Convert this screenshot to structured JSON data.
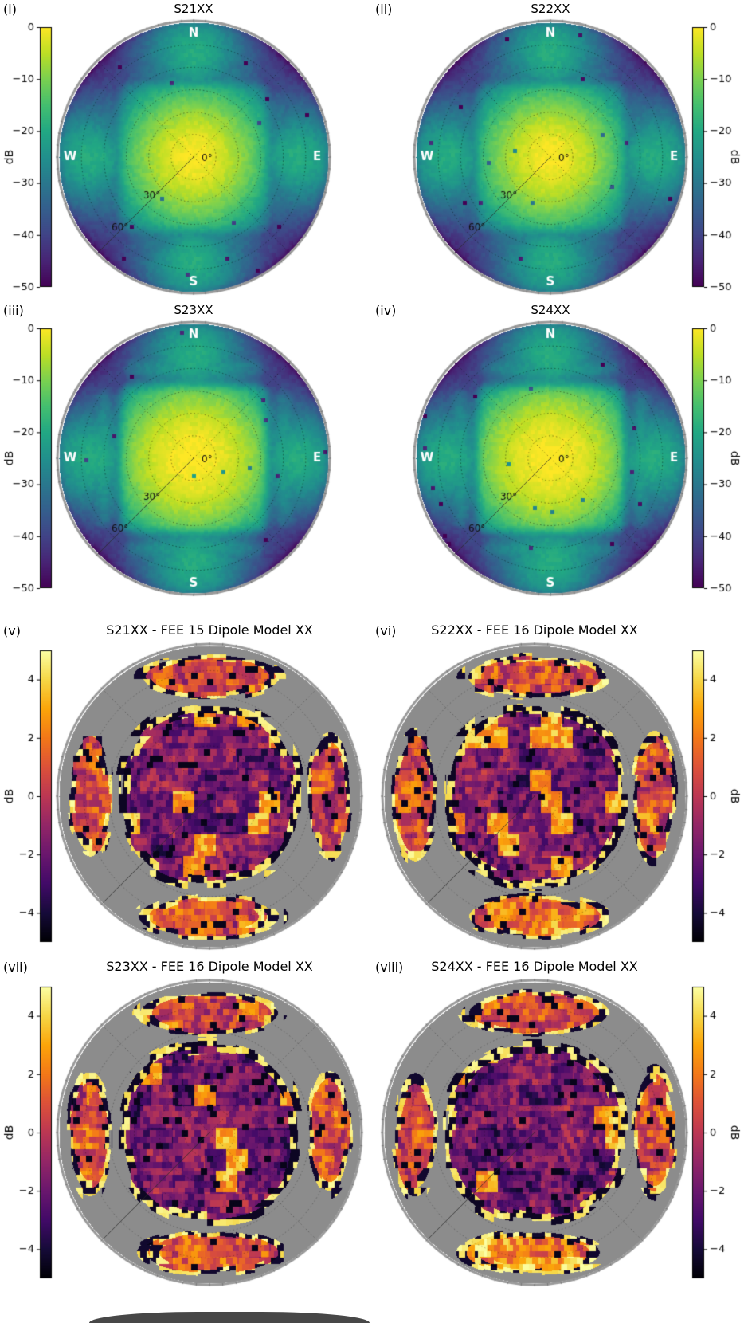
{
  "figure": {
    "rows": 4,
    "cols": 2,
    "background": "#ffffff"
  },
  "colors": {
    "map_background_gray": "#8c8c8c",
    "rim": "#999999",
    "compass_text": "#ffffff",
    "grid_lines": "#000000",
    "beam_colormap_top": "#fde725",
    "beam_colormap_bottom": "#440154",
    "diff_colormap_top": "#fcffa4",
    "diff_colormap_bottom": "#000004"
  },
  "chart_data": [
    {
      "label": "(i)",
      "title": "S21XX",
      "type": "polar_heatmap",
      "colormap": "viridis",
      "units": "dB",
      "vmin": -50,
      "vmax": 0,
      "colorbar_ticks": [
        0,
        -10,
        -20,
        -30,
        -40,
        -50
      ],
      "colorbar_label": "dB",
      "colorbar_side": "left",
      "compass": [
        "N",
        "E",
        "S",
        "W"
      ],
      "zenith_labels": [
        "0°",
        "30°",
        "60°"
      ],
      "zenith_max_deg": 90
    },
    {
      "label": "(ii)",
      "title": "S22XX",
      "type": "polar_heatmap",
      "colormap": "viridis",
      "units": "dB",
      "vmin": -50,
      "vmax": 0,
      "colorbar_ticks": [
        0,
        -10,
        -20,
        -30,
        -40,
        -50
      ],
      "colorbar_label": "dB",
      "colorbar_side": "right",
      "compass": [
        "N",
        "E",
        "S",
        "W"
      ],
      "zenith_labels": [
        "0°",
        "30°",
        "60°"
      ],
      "zenith_max_deg": 90
    },
    {
      "label": "(iii)",
      "title": "S23XX",
      "type": "polar_heatmap",
      "colormap": "viridis",
      "units": "dB",
      "vmin": -50,
      "vmax": 0,
      "colorbar_ticks": [
        0,
        -10,
        -20,
        -30,
        -40,
        -50
      ],
      "colorbar_label": "dB",
      "colorbar_side": "left",
      "compass": [
        "N",
        "E",
        "S",
        "W"
      ],
      "zenith_labels": [
        "0°",
        "30°",
        "60°"
      ],
      "zenith_max_deg": 90
    },
    {
      "label": "(iv)",
      "title": "S24XX",
      "type": "polar_heatmap",
      "colormap": "viridis",
      "units": "dB",
      "vmin": -50,
      "vmax": 0,
      "colorbar_ticks": [
        0,
        -10,
        -20,
        -30,
        -40,
        -50
      ],
      "colorbar_label": "dB",
      "colorbar_side": "right",
      "compass": [
        "N",
        "E",
        "S",
        "W"
      ],
      "zenith_labels": [
        "0°",
        "30°",
        "60°"
      ],
      "zenith_max_deg": 90
    },
    {
      "label": "(v)",
      "title": "S21XX - FEE 15 Dipole Model XX",
      "type": "polar_heatmap",
      "colormap": "inferno",
      "units": "dB",
      "vmin": -5,
      "vmax": 5,
      "colorbar_ticks": [
        4,
        2,
        0,
        -2,
        -4
      ],
      "colorbar_label": "dB",
      "colorbar_side": "left",
      "compass": null,
      "zenith_labels": null,
      "zenith_max_deg": 90
    },
    {
      "label": "(vi)",
      "title": "S22XX - FEE 16 Dipole Model XX",
      "type": "polar_heatmap",
      "colormap": "inferno",
      "units": "dB",
      "vmin": -5,
      "vmax": 5,
      "colorbar_ticks": [
        4,
        2,
        0,
        -2,
        -4
      ],
      "colorbar_label": "dB",
      "colorbar_side": "right",
      "compass": null,
      "zenith_labels": null,
      "zenith_max_deg": 90
    },
    {
      "label": "(vii)",
      "title": "S23XX - FEE 16 Dipole Model XX",
      "type": "polar_heatmap",
      "colormap": "inferno",
      "units": "dB",
      "vmin": -5,
      "vmax": 5,
      "colorbar_ticks": [
        4,
        2,
        0,
        -2,
        -4
      ],
      "colorbar_label": "dB",
      "colorbar_side": "left",
      "compass": null,
      "zenith_labels": null,
      "zenith_max_deg": 90
    },
    {
      "label": "(viii)",
      "title": "S24XX - FEE 16 Dipole Model XX",
      "type": "polar_heatmap",
      "colormap": "inferno",
      "units": "dB",
      "vmin": -5,
      "vmax": 5,
      "colorbar_ticks": [
        4,
        2,
        0,
        -2,
        -4
      ],
      "colorbar_label": "dB",
      "colorbar_side": "right",
      "compass": null,
      "zenith_labels": null,
      "zenith_max_deg": 90
    }
  ]
}
